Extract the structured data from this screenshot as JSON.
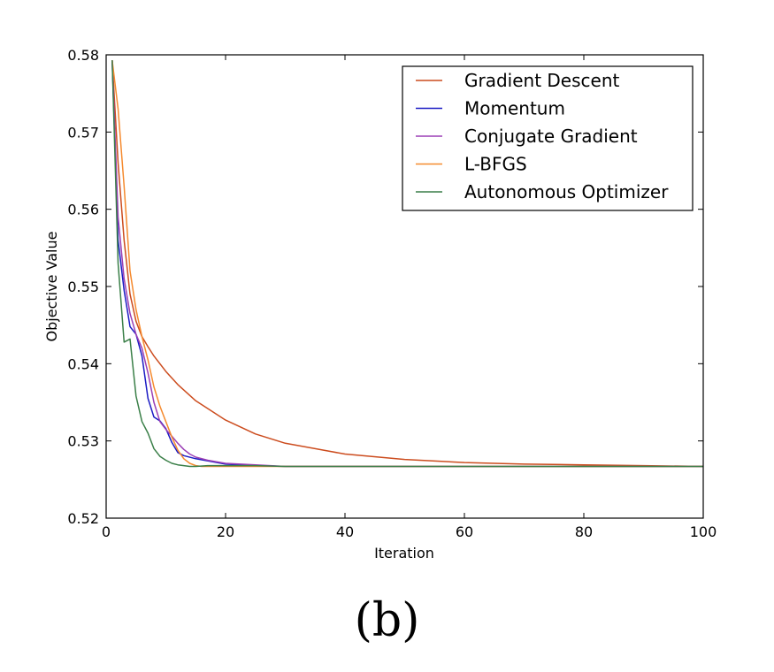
{
  "chart_data": {
    "type": "line",
    "title": "",
    "xlabel": "Iteration",
    "ylabel": "Objective Value",
    "xlim": [
      0,
      100
    ],
    "ylim": [
      0.52,
      0.58
    ],
    "xticks": [
      "0",
      "20",
      "40",
      "60",
      "80",
      "100"
    ],
    "xtick_values": [
      0,
      20,
      40,
      60,
      80,
      100
    ],
    "yticks": [
      "0.52",
      "0.53",
      "0.54",
      "0.55",
      "0.56",
      "0.57",
      "0.58"
    ],
    "ytick_values": [
      0.52,
      0.53,
      0.54,
      0.55,
      0.56,
      0.57,
      0.58
    ],
    "grid": false,
    "legend_position": "top-right",
    "series": [
      {
        "name": "Gradient Descent",
        "color": "#cc4c1e",
        "x": [
          1,
          2,
          3,
          4,
          5,
          6,
          7,
          8,
          10,
          12,
          15,
          20,
          25,
          30,
          40,
          50,
          60,
          70,
          80,
          90,
          100
        ],
        "y": [
          0.5793,
          0.566,
          0.556,
          0.549,
          0.5455,
          0.5435,
          0.5422,
          0.541,
          0.539,
          0.5373,
          0.5352,
          0.5327,
          0.5309,
          0.5297,
          0.5283,
          0.5276,
          0.5272,
          0.527,
          0.5269,
          0.5268,
          0.5267
        ]
      },
      {
        "name": "Momentum",
        "color": "#1c1cc4",
        "x": [
          1,
          2,
          3,
          4,
          5,
          6,
          7,
          8,
          9,
          10,
          11,
          12,
          13,
          15,
          20,
          25,
          30,
          40,
          60,
          80,
          100
        ],
        "y": [
          0.5793,
          0.556,
          0.5495,
          0.5448,
          0.5438,
          0.541,
          0.5355,
          0.5331,
          0.5326,
          0.5316,
          0.5298,
          0.5285,
          0.5281,
          0.5277,
          0.527,
          0.5268,
          0.5267,
          0.5267,
          0.5267,
          0.5267,
          0.5267
        ]
      },
      {
        "name": "Conjugate Gradient",
        "color": "#9b3fb5",
        "x": [
          1,
          2,
          3,
          4,
          5,
          6,
          7,
          8,
          9,
          10,
          11,
          12,
          13,
          14,
          15,
          17,
          20,
          25,
          30,
          40,
          60,
          80,
          100
        ],
        "y": [
          0.5793,
          0.559,
          0.551,
          0.5465,
          0.5438,
          0.542,
          0.5388,
          0.535,
          0.5325,
          0.5315,
          0.5306,
          0.5297,
          0.5289,
          0.5283,
          0.5279,
          0.5275,
          0.5271,
          0.5269,
          0.5267,
          0.5267,
          0.5267,
          0.5267,
          0.5267
        ]
      },
      {
        "name": "L-BFGS",
        "color": "#f58a2e",
        "x": [
          1,
          2,
          3,
          4,
          5,
          6,
          7,
          8,
          9,
          10,
          11,
          12,
          13,
          14,
          15,
          16,
          18,
          20,
          30,
          40,
          60,
          80,
          100
        ],
        "y": [
          0.5793,
          0.573,
          0.563,
          0.552,
          0.547,
          0.5435,
          0.5405,
          0.537,
          0.5345,
          0.5325,
          0.5305,
          0.5288,
          0.5277,
          0.5271,
          0.5268,
          0.5267,
          0.5267,
          0.5267,
          0.5267,
          0.5267,
          0.5267,
          0.5267,
          0.5267
        ]
      },
      {
        "name": "Autonomous Optimizer",
        "color": "#3a7f48",
        "x": [
          1,
          2,
          3,
          4,
          5,
          6,
          7,
          8,
          9,
          10,
          11,
          12,
          13,
          14,
          15,
          17,
          20,
          25,
          30,
          40,
          60,
          80,
          100
        ],
        "y": [
          0.5793,
          0.553,
          0.5428,
          0.5432,
          0.5358,
          0.5325,
          0.531,
          0.529,
          0.528,
          0.5275,
          0.5271,
          0.5269,
          0.5268,
          0.5267,
          0.5267,
          0.5268,
          0.5268,
          0.5268,
          0.5267,
          0.5267,
          0.5267,
          0.5267,
          0.5267
        ]
      }
    ]
  },
  "caption": "(b)"
}
